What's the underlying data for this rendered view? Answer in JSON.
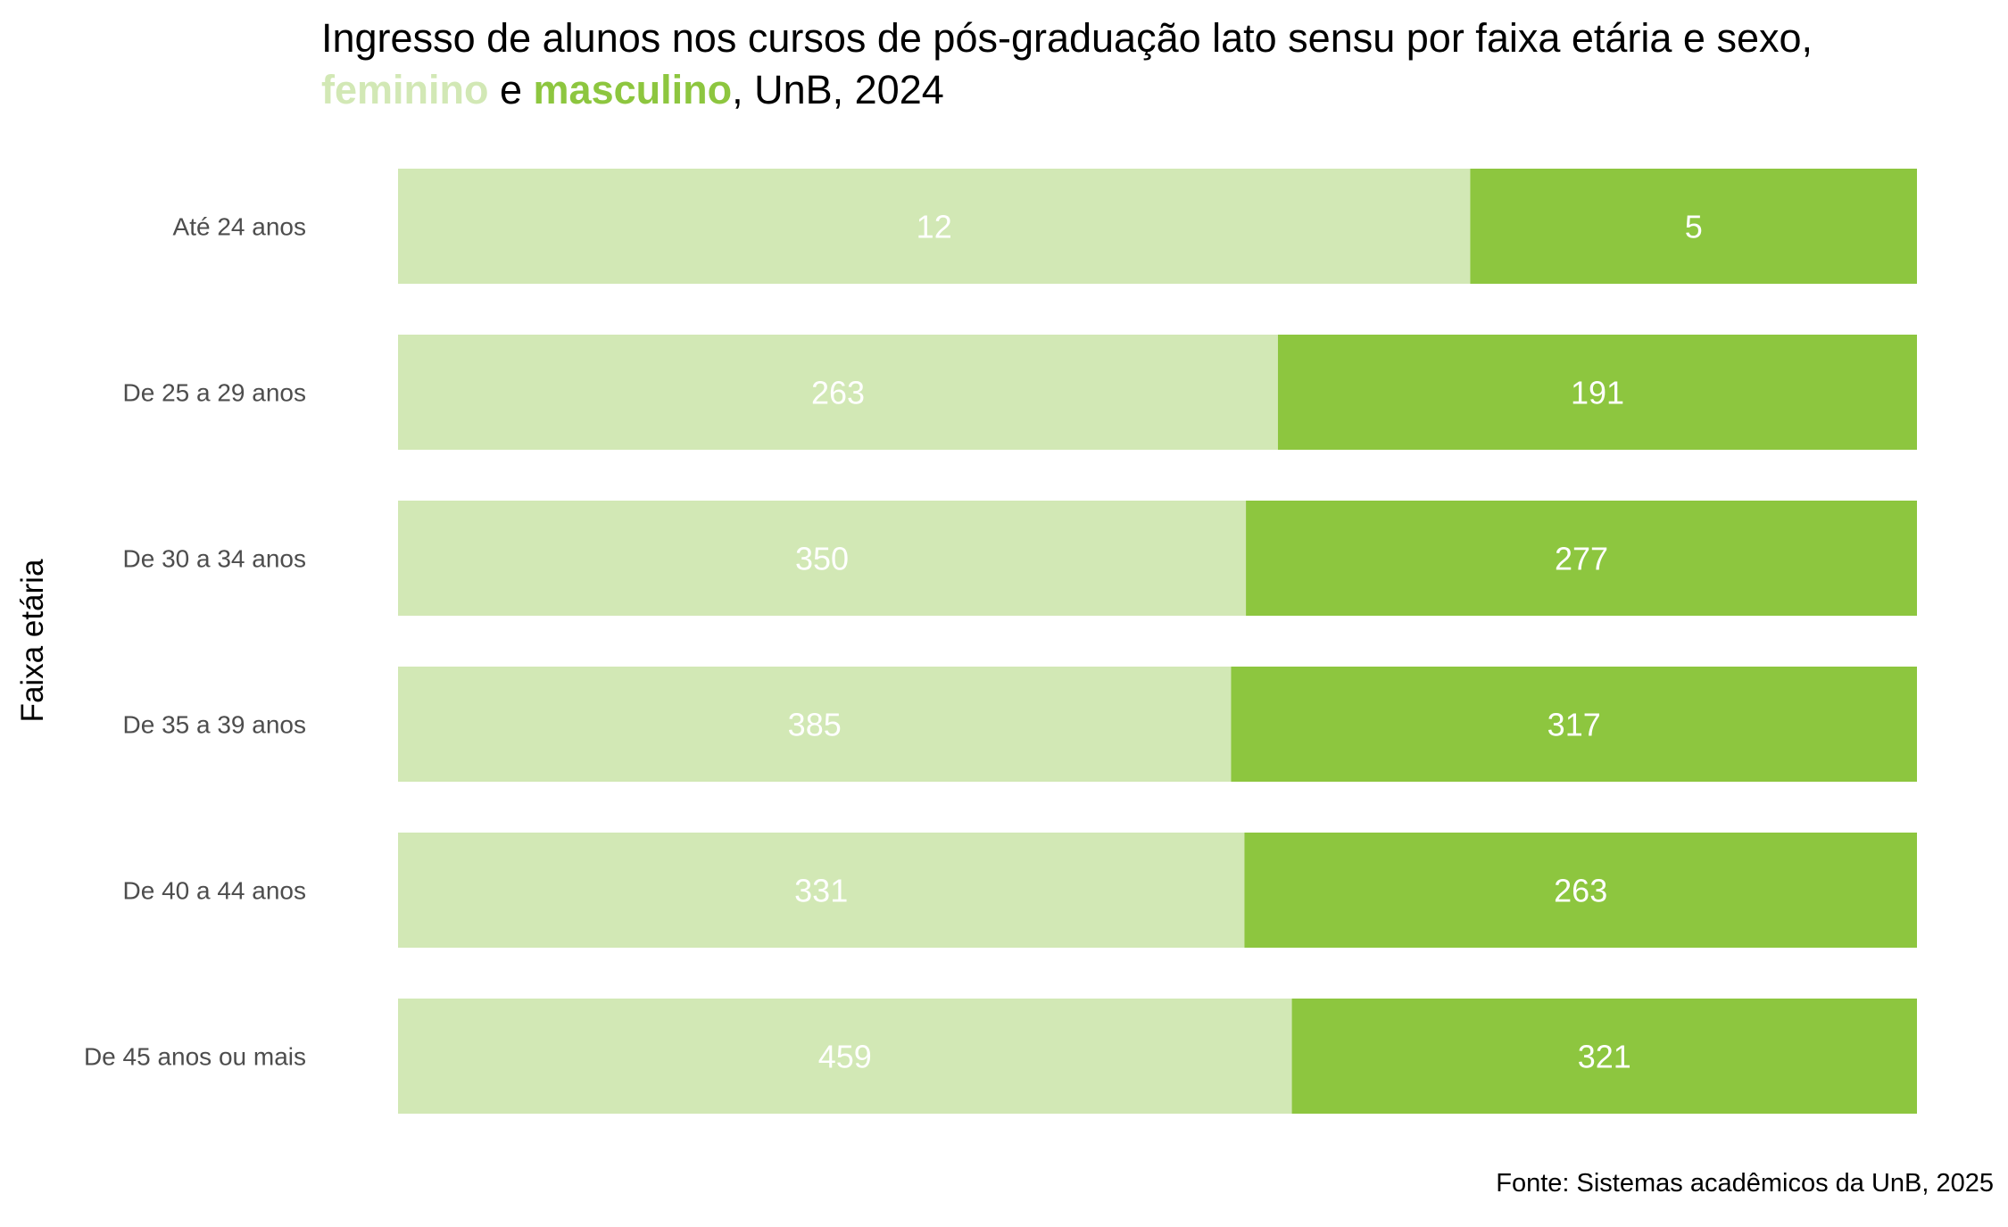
{
  "title": {
    "line1": "Ingresso de alunos nos cursos de pós-graduação lato sensu por faixa etária e sexo,",
    "feminino": "feminino",
    "connector": " e ",
    "masculino": "masculino",
    "suffix": ", UnB, 2024"
  },
  "source": "Fonte: Sistemas acadêmicos da UnB, 2025",
  "colors": {
    "feminino": "#d2e8b5",
    "masculino": "#8dc63f",
    "value_label": "#ffffff",
    "tick_label": "#4d4d4d"
  },
  "chart_data": {
    "type": "bar",
    "orientation": "horizontal",
    "stacked": "percent",
    "ylabel": "Faixa etária",
    "xlabel": "",
    "categories": [
      "Até 24 anos",
      "De 25 a 29 anos",
      "De 30 a 34 anos",
      "De 35 a 39 anos",
      "De 40 a 44 anos",
      "De 45 anos ou mais"
    ],
    "series": [
      {
        "name": "feminino",
        "values": [
          12,
          263,
          350,
          385,
          331,
          459
        ]
      },
      {
        "name": "masculino",
        "values": [
          5,
          191,
          277,
          317,
          263,
          321
        ]
      }
    ],
    "grid": false,
    "legend": "title"
  }
}
